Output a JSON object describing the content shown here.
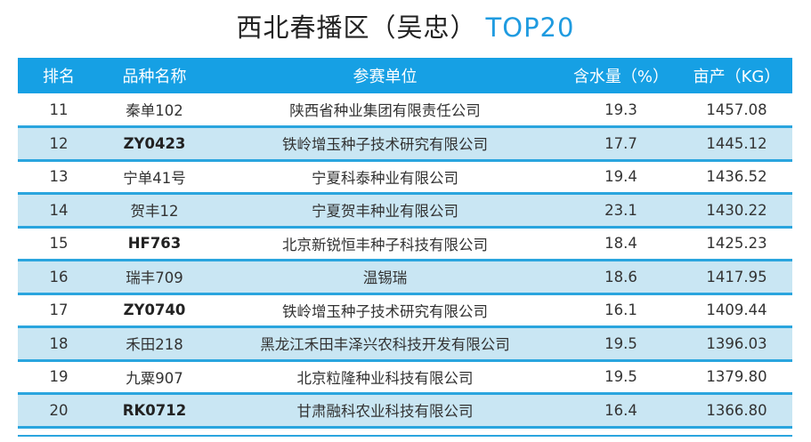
{
  "title": {
    "main": "西北春播区（吴忠）",
    "accent": "TOP20"
  },
  "headers": [
    "排名",
    "品种名称",
    "参赛单位",
    "含水量（%）",
    "亩产（KG）"
  ],
  "rows": [
    {
      "rank": "11",
      "variety": "秦单102",
      "unit": "陕西省种业集团有限责任公司",
      "moisture": "19.3",
      "yield": "1457.08",
      "bold": false
    },
    {
      "rank": "12",
      "variety": "ZY0423",
      "unit": "铁岭增玉种子技术研究有限公司",
      "moisture": "17.7",
      "yield": "1445.12",
      "bold": true
    },
    {
      "rank": "13",
      "variety": "宁单41号",
      "unit": "宁夏科泰种业有限公司",
      "moisture": "19.4",
      "yield": "1436.52",
      "bold": false
    },
    {
      "rank": "14",
      "variety": "贺丰12",
      "unit": "宁夏贺丰种业有限公司",
      "moisture": "23.1",
      "yield": "1430.22",
      "bold": false
    },
    {
      "rank": "15",
      "variety": "HF763",
      "unit": "北京新锐恒丰种子科技有限公司",
      "moisture": "18.4",
      "yield": "1425.23",
      "bold": true
    },
    {
      "rank": "16",
      "variety": "瑞丰709",
      "unit": "温锡瑞",
      "moisture": "18.6",
      "yield": "1417.95",
      "bold": false
    },
    {
      "rank": "17",
      "variety": "ZY0740",
      "unit": "铁岭增玉种子技术研究有限公司",
      "moisture": "16.1",
      "yield": "1409.44",
      "bold": true
    },
    {
      "rank": "18",
      "variety": "禾田218",
      "unit": "黑龙江禾田丰泽兴农科技开发有限公司",
      "moisture": "19.5",
      "yield": "1396.03",
      "bold": false
    },
    {
      "rank": "19",
      "variety": "九粟907",
      "unit": "北京粒隆种业科技有限公司",
      "moisture": "19.5",
      "yield": "1379.80",
      "bold": false
    },
    {
      "rank": "20",
      "variety": "RK0712",
      "unit": "甘肃融科农业科技有限公司",
      "moisture": "16.4",
      "yield": "1366.80",
      "bold": true
    }
  ]
}
